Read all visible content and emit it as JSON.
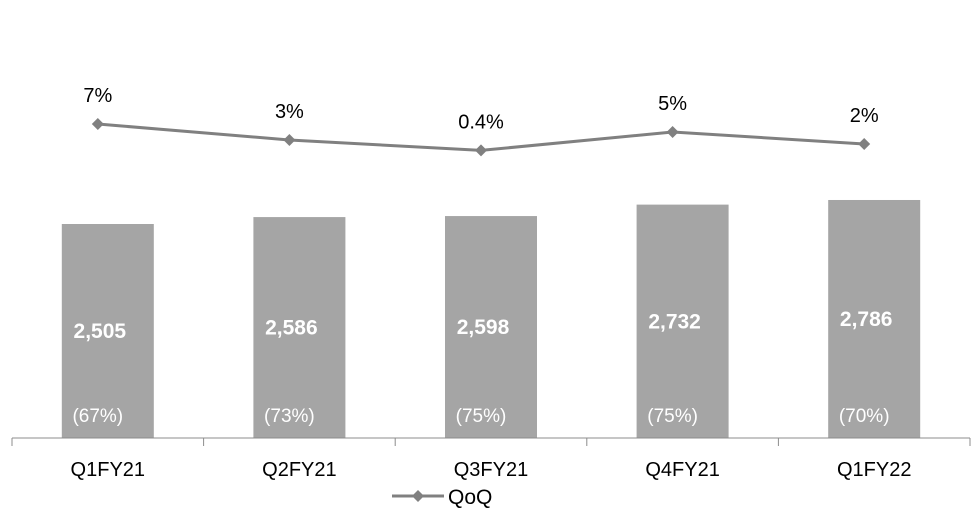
{
  "chart_data": {
    "type": "bar",
    "categories": [
      "Q1FY21",
      "Q2FY21",
      "Q3FY21",
      "Q4FY21",
      "Q1FY22"
    ],
    "bar_values": [
      2505,
      2586,
      2598,
      2732,
      2786
    ],
    "bar_labels": [
      "2,505",
      "2,586",
      "2,598",
      "2,732",
      "2,786"
    ],
    "bar_share_labels": [
      "(67%)",
      "(73%)",
      "(75%)",
      "(75%)",
      "(70%)"
    ],
    "line_series": {
      "name": "QoQ",
      "values": [
        7,
        3,
        0.4,
        5,
        2
      ],
      "labels": [
        "7%",
        "3%",
        "0.4%",
        "5%",
        "2%"
      ]
    },
    "legend_position": "bottom",
    "grid": false,
    "colors": {
      "bar": "#a5a5a5",
      "line": "#808080",
      "axis": "#8c8c8c"
    }
  }
}
